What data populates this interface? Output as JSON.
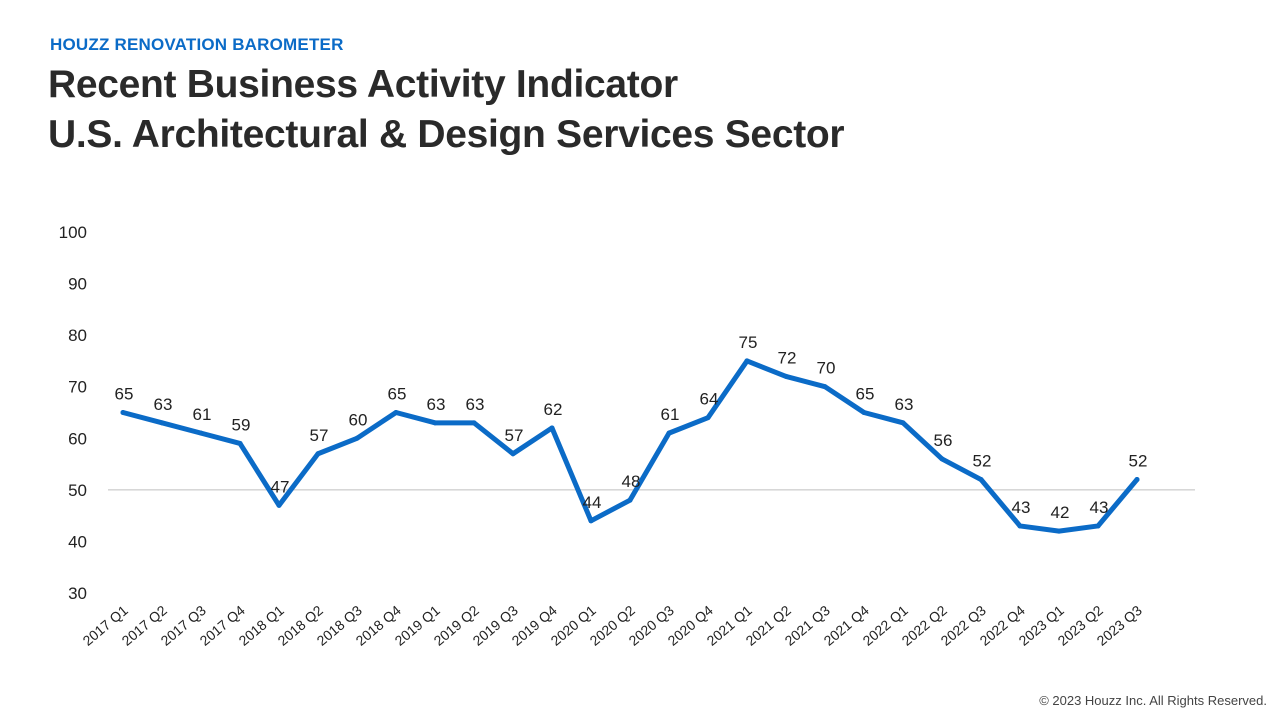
{
  "header": {
    "kicker": "HOUZZ RENOVATION BAROMETER",
    "title_line1": "Recent Business Activity Indicator",
    "title_line2": "U.S. Architectural & Design Services Sector"
  },
  "footer": {
    "copyright": "© 2023 Houzz Inc. All Rights Reserved."
  },
  "colors": {
    "line": "#0b6bc7",
    "reference_line": "#bfbfbf",
    "kicker": "#0b6bc7"
  },
  "chart_data": {
    "type": "line",
    "title": "",
    "xlabel": "",
    "ylabel": "",
    "ylim": [
      30,
      100
    ],
    "yticks": [
      30,
      40,
      50,
      60,
      70,
      80,
      90,
      100
    ],
    "reference_line": 50,
    "grid": false,
    "categories": [
      "2017 Q1",
      "2017 Q2",
      "2017 Q3",
      "2017 Q4",
      "2018 Q1",
      "2018 Q2",
      "2018 Q3",
      "2018 Q4",
      "2019 Q1",
      "2019 Q2",
      "2019 Q3",
      "2019 Q4",
      "2020 Q1",
      "2020 Q2",
      "2020 Q3",
      "2020 Q4",
      "2021 Q1",
      "2021 Q2",
      "2021 Q3",
      "2021 Q4",
      "2022 Q1",
      "2022 Q2",
      "2022 Q3",
      "2022 Q4",
      "2023 Q1",
      "2023 Q2",
      "2023 Q3"
    ],
    "series": [
      {
        "values": [
          65,
          63,
          61,
          59,
          47,
          57,
          60,
          65,
          63,
          63,
          57,
          62,
          44,
          48,
          61,
          64,
          75,
          72,
          70,
          65,
          63,
          56,
          52,
          43,
          42,
          43,
          52
        ]
      }
    ]
  }
}
